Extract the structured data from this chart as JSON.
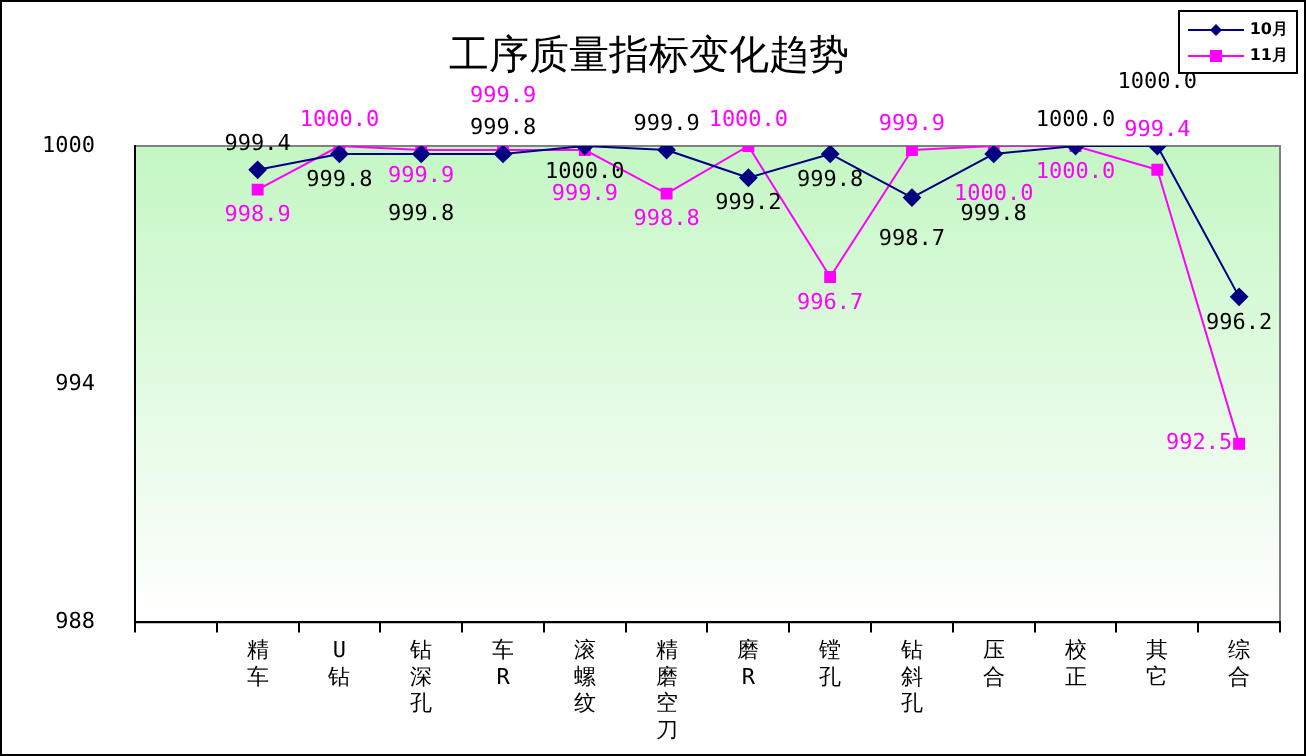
{
  "chart_data": {
    "type": "line",
    "title": "工序质量指标变化趋势",
    "categories": [
      null,
      "精车",
      "U钻",
      "钻深孔",
      "车R",
      "滚螺纹",
      "精磨空刀",
      "磨R",
      "镗孔",
      "钻斜孔",
      "压合",
      "校正",
      "其它",
      "综合"
    ],
    "series": [
      {
        "name": "10月",
        "color": "#000080",
        "marker": "diamond",
        "values": [
          null,
          999.4,
          999.8,
          999.8,
          999.8,
          1000.0,
          999.9,
          999.2,
          999.8,
          998.7,
          999.8,
          1000.0,
          1000.0,
          996.2
        ],
        "value_labels": [
          null,
          "999.4",
          "999.8",
          "999.8",
          "999.8",
          "1000.0",
          "999.9",
          "999.2",
          "999.8",
          "998.7",
          "999.8",
          "1000.0",
          "1000.0",
          "996.2"
        ]
      },
      {
        "name": "11月",
        "color": "#ff00ff",
        "marker": "square",
        "values": [
          null,
          998.9,
          1000.0,
          999.9,
          999.9,
          999.9,
          998.8,
          1000.0,
          996.7,
          999.9,
          1000.0,
          1000.0,
          999.4,
          992.5
        ],
        "value_labels": [
          null,
          "998.9",
          "1000.0",
          "999.9",
          "999.9",
          "999.9",
          "998.8",
          "1000.0",
          "996.7",
          "999.9",
          "1000.0",
          "1000.0",
          "999.4",
          "992.5"
        ]
      }
    ],
    "ylim": [
      988,
      1000
    ],
    "yticks": [
      988,
      994,
      1000
    ],
    "grid": false,
    "legend": "top right"
  }
}
